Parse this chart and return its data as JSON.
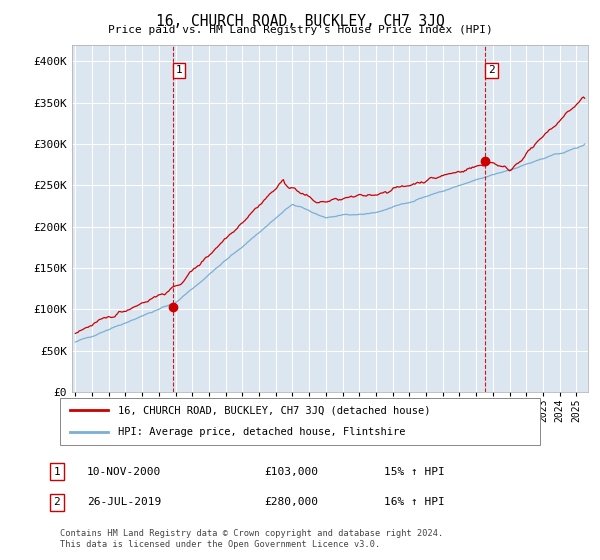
{
  "title": "16, CHURCH ROAD, BUCKLEY, CH7 3JQ",
  "subtitle": "Price paid vs. HM Land Registry's House Price Index (HPI)",
  "ylim": [
    0,
    420000
  ],
  "yticks": [
    0,
    50000,
    100000,
    150000,
    200000,
    250000,
    300000,
    350000,
    400000
  ],
  "ytick_labels": [
    "£0",
    "£50K",
    "£100K",
    "£150K",
    "£200K",
    "£250K",
    "£300K",
    "£350K",
    "£400K"
  ],
  "bg_color": "#dce6f1",
  "grid_color": "#ffffff",
  "red_color": "#cc0000",
  "blue_color": "#7bafd4",
  "sale1_date": 2000.86,
  "sale1_price": 103000,
  "sale2_date": 2019.56,
  "sale2_price": 280000,
  "legend_red": "16, CHURCH ROAD, BUCKLEY, CH7 3JQ (detached house)",
  "legend_blue": "HPI: Average price, detached house, Flintshire",
  "table_row1": [
    "1",
    "10-NOV-2000",
    "£103,000",
    "15% ↑ HPI"
  ],
  "table_row2": [
    "2",
    "26-JUL-2019",
    "£280,000",
    "16% ↑ HPI"
  ],
  "footnote": "Contains HM Land Registry data © Crown copyright and database right 2024.\nThis data is licensed under the Open Government Licence v3.0.",
  "xmin": 1994.8,
  "xmax": 2025.7
}
